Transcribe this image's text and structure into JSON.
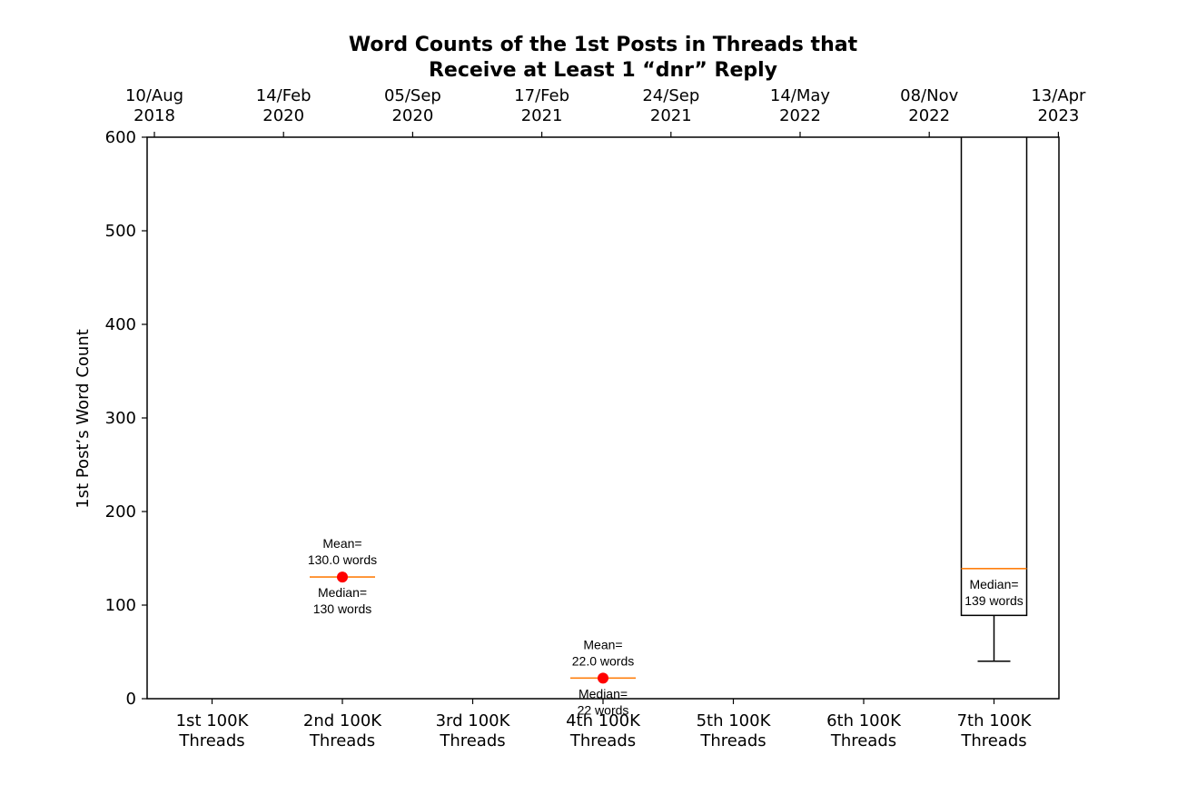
{
  "chart_data": {
    "type": "box",
    "title_lines": [
      "Word Counts of the 1st Posts in Threads that",
      "Receive at Least 1 “dnr” Reply"
    ],
    "ylabel": "1st Post’s Word Count",
    "ylim": [
      0,
      600
    ],
    "yticks": [
      0,
      100,
      200,
      300,
      400,
      500,
      600
    ],
    "categories": [
      [
        "1st 100K",
        "Threads"
      ],
      [
        "2nd 100K",
        "Threads"
      ],
      [
        "3rd 100K",
        "Threads"
      ],
      [
        "4th 100K",
        "Threads"
      ],
      [
        "5th 100K",
        "Threads"
      ],
      [
        "6th 100K",
        "Threads"
      ],
      [
        "7th 100K",
        "Threads"
      ]
    ],
    "top_axis": {
      "tick_positions": [
        0.5,
        1.5,
        2.5,
        3.5,
        4.5,
        5.5,
        6.5,
        7.5
      ],
      "tick_labels": [
        [
          "10/Aug",
          "2018"
        ],
        [
          "14/Feb",
          "2020"
        ],
        [
          "05/Sep",
          "2020"
        ],
        [
          "17/Feb",
          "2021"
        ],
        [
          "24/Sep",
          "2021"
        ],
        [
          "14/May",
          "2022"
        ],
        [
          "08/Nov",
          "2022"
        ],
        [
          "13/Apr",
          "2023"
        ]
      ]
    },
    "boxes": [
      {
        "category_index": 1,
        "median": 130,
        "q1": 130,
        "q3": 130,
        "whisker_low": 130,
        "whisker_high": 130,
        "mean": 130,
        "mean_label": [
          "Mean=",
          "130.0 words"
        ],
        "median_label": [
          "Median=",
          "130 words"
        ]
      },
      {
        "category_index": 3,
        "median": 22,
        "q1": 22,
        "q3": 22,
        "whisker_low": 22,
        "whisker_high": 22,
        "mean": 22,
        "mean_label": [
          "Mean=",
          "22.0 words"
        ],
        "median_label": [
          "Median=",
          "22 words"
        ]
      },
      {
        "category_index": 6,
        "median": 139,
        "q1": 89,
        "q3": 620,
        "whisker_low": 40,
        "whisker_high": 650,
        "median_label": [
          "Median=",
          "139 words"
        ]
      }
    ],
    "colors": {
      "median": "#ff7f0e",
      "mean": "#ff0000",
      "box": "#000000"
    },
    "grid": false
  }
}
